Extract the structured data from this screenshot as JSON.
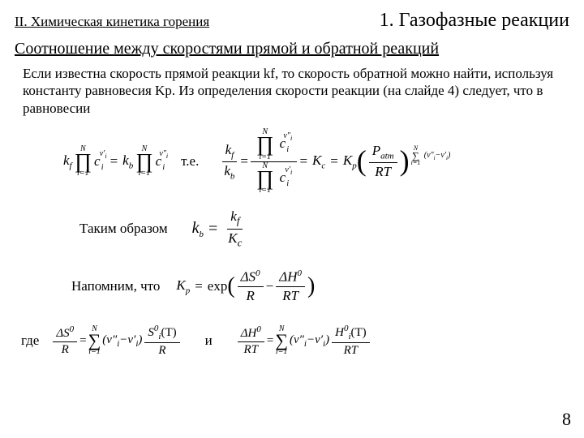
{
  "header": {
    "left": "II. Химическая кинетика горения",
    "right": "1. Газофазные реакции"
  },
  "subtitle": "Соотношение между скоростями прямой и обратной реакций",
  "paragraph": "Если известна скорость прямой реакции kf, то скорость обратной можно найти, используя константу равновесия Kp. Из определения скорости реакции (на слайде 4) следует, что в равновесии",
  "labels": {
    "te": "т.е.",
    "takim": "Таким образом",
    "napomnim": "Напомним, что",
    "gde": "где",
    "i": "и"
  },
  "eq1": {
    "kf": "k",
    "kfSub": "f",
    "kb": "k",
    "kbSub": "b",
    "prod": "∏",
    "N": "N",
    "i1": "i=1",
    "c": "c",
    "ci": "i",
    "nu1": "ν′",
    "nu2": "ν″",
    "eq": "="
  },
  "eq2": {
    "kf": "k",
    "kfSub": "f",
    "kb": "k",
    "kbSub": "b",
    "Kc": "K",
    "KcSub": "c",
    "Kp": "K",
    "KpSub": "p",
    "Patm": "P",
    "PatmSub": "atm",
    "RT": "RT",
    "sum": "∑",
    "N": "N",
    "i1": "i=1",
    "expSup": "(ν″−ν′)",
    "iSub": "i"
  },
  "eq3": {
    "kb": "k",
    "kbSub": "b",
    "kf": "k",
    "kfSub": "f",
    "Kc": "K",
    "KcSub": "c"
  },
  "eq4": {
    "Kp": "K",
    "KpSub": "p",
    "exp": "exp",
    "dS": "ΔS",
    "zero": "0",
    "dH": "ΔH",
    "R": "R",
    "RT": "RT",
    "minus": "−"
  },
  "eq5": {
    "dS": "ΔS",
    "zero": "0",
    "R": "R",
    "sum": "∑",
    "N": "N",
    "i1": "i=1",
    "diff": "(ν″−ν′)",
    "iSub": "i",
    "Si": "S",
    "T": "(T)",
    "Rden": "R",
    "Hzero": "0"
  },
  "eq6": {
    "dH": "ΔH",
    "zero": "0",
    "RT": "RT",
    "sum": "∑",
    "N": "N",
    "i1": "i=1",
    "diff": "(ν″−ν′)",
    "iSub": "i",
    "Hi": "H",
    "T": "(T)"
  },
  "pageNumber": "8"
}
